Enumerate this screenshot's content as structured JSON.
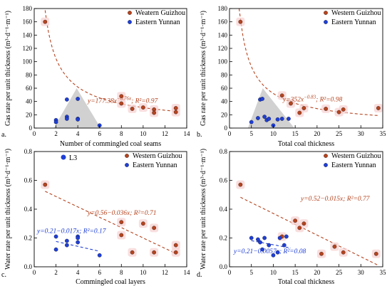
{
  "chart_data": [
    {
      "panel": "a",
      "type": "scatter",
      "panel_label": "a.",
      "xlabel": "Number of commingled coal seams",
      "ylabel": "Gas rate per unit thickness (m³·d⁻¹·m⁻¹)",
      "xlim": [
        0,
        14
      ],
      "ylim": [
        0,
        180
      ],
      "xticks": [
        0,
        2,
        4,
        6,
        8,
        10,
        12,
        14
      ],
      "yticks": [
        0,
        20,
        40,
        60,
        80,
        100,
        120,
        140,
        160,
        180
      ],
      "legend": {
        "placement": "top-right"
      },
      "series": [
        {
          "name": "Weatern Guizhou",
          "color": "#b5441f",
          "x": [
            1,
            8,
            8,
            9,
            10,
            11,
            11,
            13,
            13
          ],
          "y": [
            160,
            48,
            37,
            29,
            31,
            28,
            23,
            30,
            24
          ]
        },
        {
          "name": "Eastern Yunnan",
          "color": "#1f3fd6",
          "x": [
            2,
            2,
            3,
            3,
            3,
            4,
            4,
            4,
            6
          ],
          "y": [
            12,
            9,
            43,
            17,
            14,
            44,
            14,
            13,
            4
          ]
        }
      ],
      "fit": {
        "type": "power",
        "a": 177.38,
        "b": -0.76,
        "x_range": [
          1,
          13
        ],
        "label_prefix": "y=177.38x",
        "exponent": "−0.76x",
        "label_r2": "; R²=0.97"
      },
      "triangle": {
        "x": [
          1.8,
          3.9,
          6.1
        ],
        "y": [
          0,
          60,
          0
        ]
      }
    },
    {
      "panel": "b",
      "type": "scatter",
      "panel_label": "b.",
      "xlabel": "Total coal thickness",
      "ylabel": "Gas rate per unit thickness (m³·d⁻¹·m⁻¹)",
      "xlim": [
        0,
        35
      ],
      "ylim": [
        0,
        180
      ],
      "xticks": [
        0,
        5,
        10,
        15,
        20,
        25,
        30,
        35
      ],
      "yticks": [
        0,
        20,
        40,
        60,
        80,
        100,
        120,
        140,
        160,
        180
      ],
      "legend": {
        "placement": "top-right"
      },
      "series": [
        {
          "name": "Western Guizhou",
          "color": "#b5441f",
          "x": [
            2.5,
            12,
            14,
            16,
            17,
            22,
            25,
            26,
            34
          ],
          "y": [
            160,
            49,
            37,
            23,
            30,
            29,
            24,
            28,
            30
          ]
        },
        {
          "name": "Eastern Yunnan",
          "color": "#1f3fd6",
          "x": [
            5,
            6.5,
            7,
            7.5,
            8,
            8.5,
            9,
            10,
            11,
            12,
            13.5
          ],
          "y": [
            9,
            15,
            43,
            44,
            17,
            12,
            14,
            4,
            13,
            14,
            14
          ]
        }
      ],
      "fit": {
        "type": "power",
        "a": 352,
        "b": -0.83,
        "x_range": [
          2.2,
          34
        ],
        "label_prefix": "y=352x",
        "exponent": "−0.83",
        "label_r2": "; R²=0.98"
      },
      "triangle": {
        "x": [
          4.2,
          7.6,
          14.8
        ],
        "y": [
          0,
          60,
          0
        ]
      }
    },
    {
      "panel": "c",
      "type": "scatter",
      "panel_label": "c.",
      "xlabel": "Commingled coal layers",
      "ylabel": "Water rate per unit thickness (m³·d⁻¹·m⁻¹)",
      "xlim": [
        0,
        14
      ],
      "ylim": [
        0,
        0.8
      ],
      "xticks": [
        0,
        2,
        4,
        6,
        8,
        10,
        12,
        14
      ],
      "yticks": [
        0.0,
        0.2,
        0.4,
        0.6,
        0.8
      ],
      "legend": {
        "placement": "top",
        "extra_entry": "L3"
      },
      "series": [
        {
          "name": "Western Guizhou",
          "color": "#b5441f",
          "x": [
            1,
            8,
            8,
            9,
            10,
            11,
            11,
            13,
            13
          ],
          "y": [
            0.57,
            0.31,
            0.22,
            0.1,
            0.3,
            0.27,
            0.1,
            0.15,
            0.1
          ]
        },
        {
          "name": "Eastern Yunnan",
          "color": "#1f3fd6",
          "x": [
            2,
            2,
            3,
            3,
            4,
            4,
            4,
            6
          ],
          "y": [
            0.21,
            0.12,
            0.18,
            0.15,
            0.21,
            0.2,
            0.17,
            0.08
          ]
        }
      ],
      "fits": [
        {
          "type": "linear",
          "a": 0.56,
          "b": -0.036,
          "x_range": [
            1,
            13
          ],
          "color": "#b5441f",
          "label": "y=0.56−0.036x; R²=0.71"
        },
        {
          "type": "linear",
          "a": 0.21,
          "b": -0.017,
          "x_range": [
            2,
            6
          ],
          "color": "#1f3fd6",
          "label": "y=0.21−0.017x; R²=0.17"
        }
      ]
    },
    {
      "panel": "d",
      "type": "scatter",
      "panel_label": "d.",
      "xlabel": "Total coal thickness",
      "ylabel": "Water rate per unit thickness (m³·d⁻¹·m⁻¹)",
      "xlim": [
        0,
        35
      ],
      "ylim": [
        0,
        0.8
      ],
      "xticks": [
        0,
        5,
        10,
        15,
        20,
        25,
        30,
        35
      ],
      "yticks": [
        0.0,
        0.2,
        0.4,
        0.6,
        0.8
      ],
      "legend": {
        "placement": "top-right"
      },
      "series": [
        {
          "name": "Western Guizhou",
          "color": "#b5441f",
          "x": [
            2.5,
            12,
            15,
            16,
            17,
            21,
            24,
            26,
            33.5
          ],
          "y": [
            0.57,
            0.21,
            0.32,
            0.27,
            0.3,
            0.09,
            0.14,
            0.1,
            0.09
          ]
        },
        {
          "name": "Eastern Yunnan",
          "color": "#1f3fd6",
          "x": [
            5,
            6.5,
            7,
            7.5,
            8,
            9,
            10,
            11,
            11.5,
            12.5,
            13
          ],
          "y": [
            0.2,
            0.19,
            0.17,
            0.12,
            0.2,
            0.15,
            0.08,
            0.1,
            0.2,
            0.15,
            0.21
          ]
        }
      ],
      "fits": [
        {
          "type": "linear",
          "a": 0.52,
          "b": -0.015,
          "x_range": [
            2.5,
            34
          ],
          "color": "#b5441f",
          "label": "y=0.52−0.015x; R²=0.77"
        },
        {
          "type": "linear",
          "a": 0.21,
          "b": -0.0057,
          "x_range": [
            5,
            14
          ],
          "color": "#1f3fd6",
          "label": "y=0.21−0.0057x; R²=0.08"
        }
      ]
    }
  ]
}
